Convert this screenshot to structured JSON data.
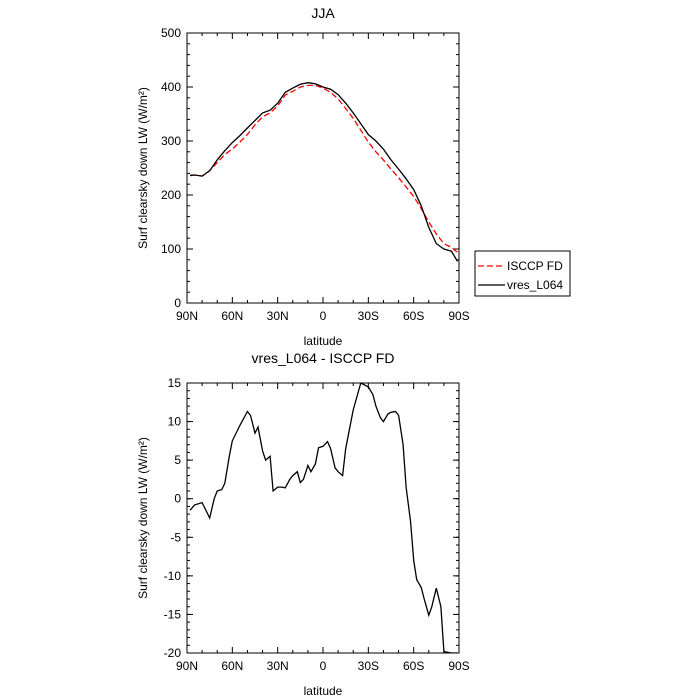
{
  "chart_data": [
    {
      "type": "line",
      "title": "JJA",
      "xlabel": "latitude",
      "ylabel": "Surf clearsky down LW (W/m²)",
      "x_ticks": [
        90,
        60,
        30,
        0,
        -30,
        -60,
        -90
      ],
      "x_tick_labels": [
        "90N",
        "60N",
        "30N",
        "0",
        "30S",
        "60S",
        "90S"
      ],
      "xlim": [
        90,
        -90
      ],
      "ylim": [
        0,
        500
      ],
      "y_ticks": [
        0,
        100,
        200,
        300,
        400,
        500
      ],
      "y_tick_labels": [
        "0",
        "100",
        "200",
        "300",
        "400",
        "500"
      ],
      "grid": false,
      "legend": {
        "placement": "outside right",
        "entries": [
          "ISCCP FD",
          "vres_L064"
        ]
      },
      "series": [
        {
          "name": "ISCCP FD",
          "color": "#ff0000",
          "dash": "dashed",
          "x": [
            88,
            85,
            80,
            75,
            70,
            65,
            60,
            55,
            50,
            45,
            40,
            35,
            30,
            25,
            20,
            15,
            10,
            5,
            0,
            -5,
            -10,
            -15,
            -20,
            -25,
            -30,
            -35,
            -40,
            -45,
            -50,
            -55,
            -60,
            -65,
            -70,
            -75,
            -80,
            -85,
            -89
          ],
          "y": [
            237,
            237,
            235,
            245,
            260,
            275,
            285,
            298,
            312,
            330,
            345,
            352,
            365,
            385,
            392,
            400,
            403,
            403,
            398,
            390,
            378,
            360,
            342,
            320,
            298,
            280,
            265,
            248,
            232,
            215,
            197,
            175,
            150,
            128,
            110,
            103,
            94
          ]
        },
        {
          "name": "vres_L064",
          "color": "#000000",
          "dash": "solid",
          "x": [
            88,
            85,
            80,
            75,
            70,
            65,
            60,
            55,
            50,
            45,
            40,
            35,
            30,
            25,
            20,
            15,
            10,
            5,
            0,
            -5,
            -10,
            -15,
            -20,
            -25,
            -30,
            -35,
            -40,
            -45,
            -50,
            -55,
            -60,
            -65,
            -70,
            -75,
            -80,
            -85,
            -89
          ],
          "y": [
            236,
            237,
            235,
            245,
            265,
            282,
            297,
            310,
            324,
            338,
            352,
            357,
            370,
            390,
            398,
            405,
            408,
            406,
            400,
            396,
            386,
            370,
            352,
            332,
            312,
            300,
            285,
            265,
            248,
            230,
            210,
            180,
            140,
            110,
            100,
            96,
            77
          ]
        }
      ]
    },
    {
      "type": "line",
      "title": "vres_L064 - ISCCP FD",
      "xlabel": "latitude",
      "ylabel": "Surf clearsky down LW (W/m²)",
      "x_ticks": [
        90,
        60,
        30,
        0,
        -30,
        -60,
        -90
      ],
      "x_tick_labels": [
        "90N",
        "60N",
        "30N",
        "0",
        "30S",
        "60S",
        "90S"
      ],
      "xlim": [
        90,
        -90
      ],
      "ylim": [
        -20,
        15
      ],
      "y_ticks": [
        -20,
        -15,
        -10,
        -5,
        0,
        5,
        10,
        15
      ],
      "y_tick_labels": [
        "-20",
        "-15",
        "-10",
        "-5",
        "0",
        "5",
        "10",
        "15"
      ],
      "grid": false,
      "series": [
        {
          "color": "#000000",
          "dash": "solid",
          "x": [
            88,
            85,
            80,
            75,
            72,
            70,
            67,
            65,
            62,
            60,
            55,
            50,
            48,
            45,
            43,
            40,
            38,
            35,
            33,
            30,
            27,
            25,
            22,
            20,
            17,
            15,
            13,
            10,
            8,
            5,
            3,
            0,
            -3,
            -5,
            -8,
            -10,
            -13,
            -15,
            -20,
            -25,
            -30,
            -33,
            -35,
            -38,
            -40,
            -43,
            -45,
            -48,
            -50,
            -53,
            -55,
            -58,
            -60,
            -62,
            -65,
            -67,
            -70,
            -72,
            -75,
            -78,
            -80,
            -85,
            -87,
            -89
          ],
          "y": [
            -1.5,
            -0.8,
            -0.5,
            -2.5,
            0,
            1,
            1.2,
            2,
            5.5,
            7.5,
            9.5,
            11.3,
            10.8,
            8.5,
            9.3,
            6.2,
            5,
            5.5,
            1,
            1.5,
            1.5,
            1.4,
            2.5,
            3,
            3.5,
            2.1,
            2.5,
            4.3,
            3.5,
            4.5,
            6.6,
            6.8,
            7.4,
            6.5,
            4,
            3.5,
            3,
            6.5,
            11.5,
            15,
            14.5,
            13.5,
            12,
            10.5,
            10,
            11,
            11.2,
            11.3,
            10.8,
            7,
            1.5,
            -3,
            -8,
            -10.5,
            -11.5,
            -13,
            -15.1,
            -14,
            -11.6,
            -14,
            -19.8,
            -20,
            -20,
            -20
          ]
        }
      ]
    }
  ]
}
